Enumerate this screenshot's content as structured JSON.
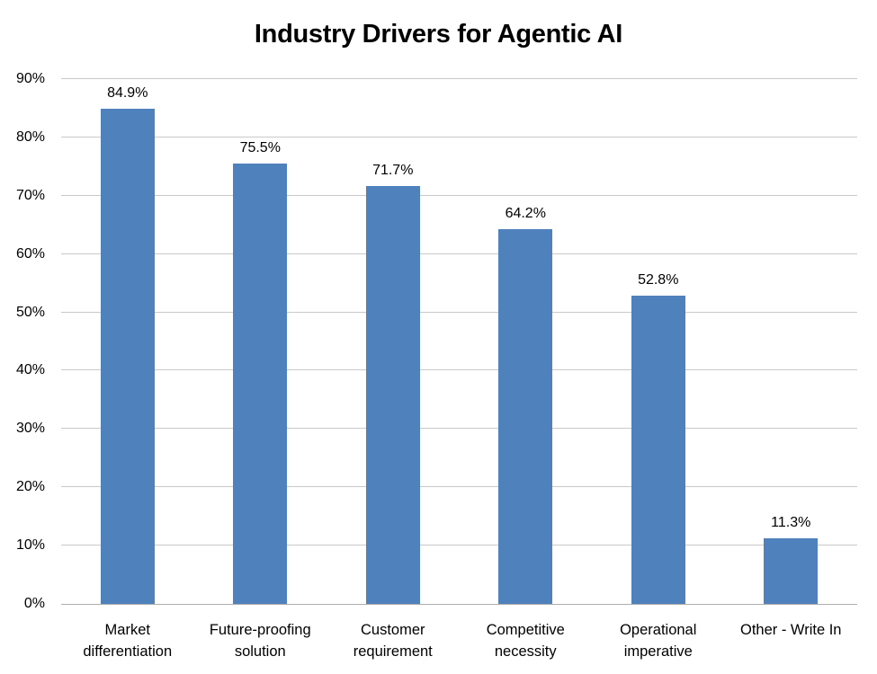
{
  "chart_data": {
    "type": "bar",
    "title": "Industry Drivers for Agentic AI",
    "categories": [
      "Market differentiation",
      "Future-proofing solution",
      "Customer requirement",
      "Competitive necessity",
      "Operational imperative",
      "Other - Write In"
    ],
    "values": [
      84.9,
      75.5,
      71.7,
      64.2,
      52.8,
      11.3
    ],
    "data_labels": [
      "84.9%",
      "75.5%",
      "71.7%",
      "64.2%",
      "52.8%",
      "11.3%"
    ],
    "xlabel": "",
    "ylabel": "",
    "ylim": [
      0,
      90
    ],
    "ytick_step": 10,
    "ytick_labels": [
      "0%",
      "10%",
      "20%",
      "30%",
      "40%",
      "50%",
      "60%",
      "70%",
      "80%",
      "90%"
    ],
    "grid": true,
    "legend_position": "none",
    "bar_color": "#4F81BD",
    "gridline_color": "#C9C9C9",
    "axis_line_color": "#ADADAD",
    "text_color": "#000000"
  }
}
